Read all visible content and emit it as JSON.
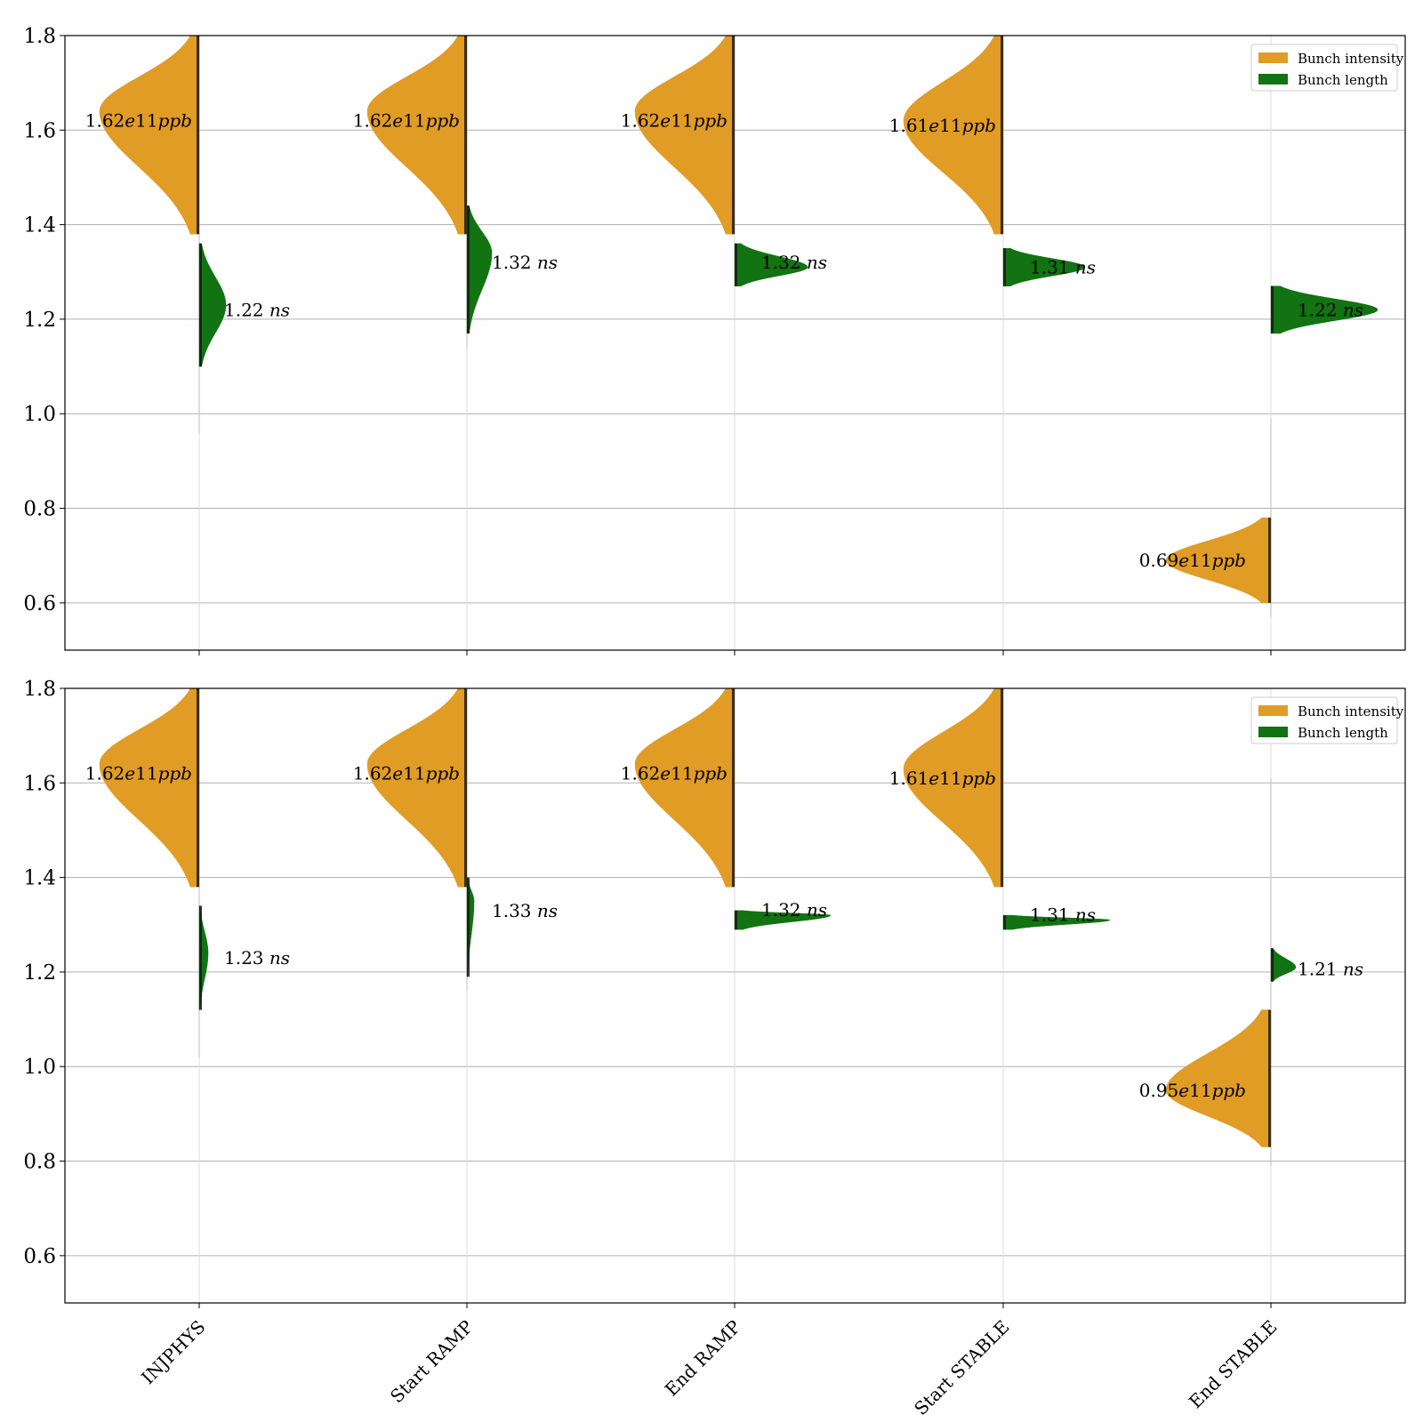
{
  "colors": {
    "intensity": "#e09c25",
    "length": "#117311",
    "points": "#1a1a1a",
    "grid": "#b0b0b0",
    "frame": "#000000"
  },
  "legend": {
    "placement": "upper-right",
    "intensity_label": "Bunch intensity",
    "length_label": "Bunch length"
  },
  "chart_data": [
    {
      "type": "violin",
      "categories": [
        "INJPHYS",
        "Start RAMP",
        "End RAMP",
        "Start STABLE",
        "End STABLE"
      ],
      "ylim": [
        0.5,
        1.8
      ],
      "yticks": [
        0.6,
        0.8,
        1.0,
        1.2,
        1.4,
        1.6,
        1.8
      ],
      "yticks_text": [
        "0.6",
        "0.8",
        "1.0",
        "1.2",
        "1.4",
        "1.6",
        "1.8"
      ],
      "grid": true,
      "series": [
        {
          "name": "Bunch intensity",
          "side": "left",
          "values": [
            1.62,
            1.62,
            1.62,
            1.61,
            0.69
          ],
          "labels": [
            "1.62e11ppb",
            "1.62e11ppb",
            "1.62e11ppb",
            "1.61e11ppb",
            "0.69e11ppb"
          ],
          "label_value": "e11",
          "label_unit": "ppb",
          "ranges": [
            [
              1.38,
              1.8
            ],
            [
              1.38,
              1.8
            ],
            [
              1.38,
              1.8
            ],
            [
              1.38,
              1.8
            ],
            [
              0.6,
              0.78
            ]
          ],
          "tails": [
            [
              0.96,
              1.8
            ],
            [
              1.14,
              1.8
            ],
            [
              1.38,
              1.8
            ],
            [
              1.38,
              1.8
            ],
            [
              0.57,
              0.99
            ]
          ],
          "peaks": [
            1.64,
            1.64,
            1.64,
            1.62,
            0.69
          ]
        },
        {
          "name": "Bunch length",
          "side": "right",
          "values": [
            1.22,
            1.32,
            1.32,
            1.31,
            1.22
          ],
          "labels": [
            "1.22 ns",
            "1.32 ns",
            "1.32 ns",
            "1.31 ns",
            "1.22 ns"
          ],
          "label_unit": "ns",
          "ranges": [
            [
              1.1,
              1.36
            ],
            [
              1.17,
              1.44
            ],
            [
              1.27,
              1.36
            ],
            [
              1.27,
              1.35
            ],
            [
              1.17,
              1.27
            ]
          ],
          "peaks": [
            1.23,
            1.34,
            1.31,
            1.31,
            1.22
          ]
        }
      ]
    },
    {
      "type": "violin",
      "categories": [
        "INJPHYS",
        "Start RAMP",
        "End RAMP",
        "Start STABLE",
        "End STABLE"
      ],
      "ylim": [
        0.5,
        1.8
      ],
      "yticks": [
        0.6,
        0.8,
        1.0,
        1.2,
        1.4,
        1.6,
        1.8
      ],
      "yticks_text": [
        "0.6",
        "0.8",
        "1.0",
        "1.2",
        "1.4",
        "1.6",
        "1.8"
      ],
      "grid": true,
      "series": [
        {
          "name": "Bunch intensity",
          "side": "left",
          "values": [
            1.62,
            1.62,
            1.62,
            1.61,
            0.95
          ],
          "labels": [
            "1.62e11ppb",
            "1.62e11ppb",
            "1.62e11ppb",
            "1.61e11ppb",
            "0.95e11ppb"
          ],
          "label_value": "e11",
          "label_unit": "ppb",
          "ranges": [
            [
              1.38,
              1.8
            ],
            [
              1.38,
              1.8
            ],
            [
              1.38,
              1.8
            ],
            [
              1.38,
              1.8
            ],
            [
              0.83,
              1.12
            ]
          ],
          "tails": [
            [
              1.02,
              1.8
            ],
            [
              1.16,
              1.8
            ],
            [
              1.38,
              1.8
            ],
            [
              1.38,
              1.8
            ],
            [
              0.79,
              1.61
            ]
          ],
          "peaks": [
            1.64,
            1.64,
            1.64,
            1.63,
            0.95
          ]
        },
        {
          "name": "Bunch length",
          "side": "right",
          "values": [
            1.23,
            1.33,
            1.32,
            1.31,
            1.21
          ],
          "labels": [
            "1.23 ns",
            "1.33 ns",
            "1.32 ns",
            "1.31 ns",
            "1.21 ns"
          ],
          "label_unit": "ns",
          "ranges": [
            [
              1.12,
              1.34
            ],
            [
              1.19,
              1.4
            ],
            [
              1.29,
              1.33
            ],
            [
              1.29,
              1.32
            ],
            [
              1.18,
              1.25
            ]
          ],
          "peaks": [
            1.24,
            1.35,
            1.32,
            1.31,
            1.21
          ]
        }
      ]
    }
  ]
}
